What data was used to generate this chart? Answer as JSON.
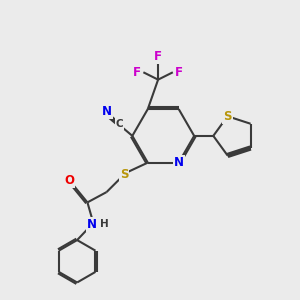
{
  "bg_color": "#ebebeb",
  "bond_color": "#3a3a3a",
  "bond_width": 1.5,
  "dbo": 0.055,
  "atom_colors": {
    "N": "#0000ee",
    "S": "#b8960a",
    "O": "#ee0000",
    "F": "#cc00cc",
    "C": "#3a3a3a",
    "H": "#3a3a3a"
  },
  "fs": 8.5,
  "fs_small": 7.5
}
